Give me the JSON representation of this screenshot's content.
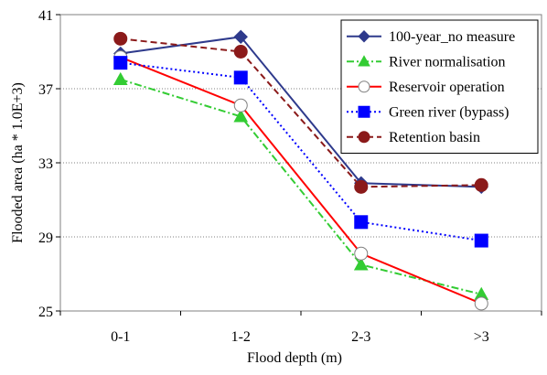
{
  "chart_data": {
    "type": "line",
    "title": "",
    "xlabel": "Flood depth (m)",
    "ylabel": "Flooded area (ha * 1.0E+3)",
    "categories": [
      "0-1",
      "1-2",
      "2-3",
      ">3"
    ],
    "ylim": [
      25,
      41
    ],
    "yticks": [
      25,
      29,
      33,
      37,
      41
    ],
    "grid": "horizontal dotted",
    "legend_position": "top-right",
    "series": [
      {
        "name": "100-year_no measure",
        "values": [
          38.9,
          39.8,
          31.9,
          31.7
        ],
        "color": "#2E3A8C",
        "dash": "solid",
        "marker": "diamond",
        "marker_fill": "#2E3A8C"
      },
      {
        "name": "River normalisation",
        "values": [
          37.5,
          35.5,
          27.5,
          25.9
        ],
        "color": "#33CC33",
        "dash": "dashdot",
        "marker": "triangle",
        "marker_fill": "#33CC33"
      },
      {
        "name": "Reservoir operation",
        "values": [
          38.7,
          36.1,
          28.1,
          25.4
        ],
        "color": "#FF0000",
        "dash": "solid",
        "marker": "circle",
        "marker_fill": "#FFFFFF"
      },
      {
        "name": "Green river (bypass)",
        "values": [
          38.4,
          37.6,
          29.8,
          28.8
        ],
        "color": "#0000FF",
        "dash": "dotted",
        "marker": "square",
        "marker_fill": "#0000FF"
      },
      {
        "name": "Retention basin",
        "values": [
          39.7,
          39.0,
          31.7,
          31.8
        ],
        "color": "#8B1A1A",
        "dash": "dashed",
        "marker": "circle",
        "marker_fill": "#8B1A1A"
      }
    ]
  }
}
